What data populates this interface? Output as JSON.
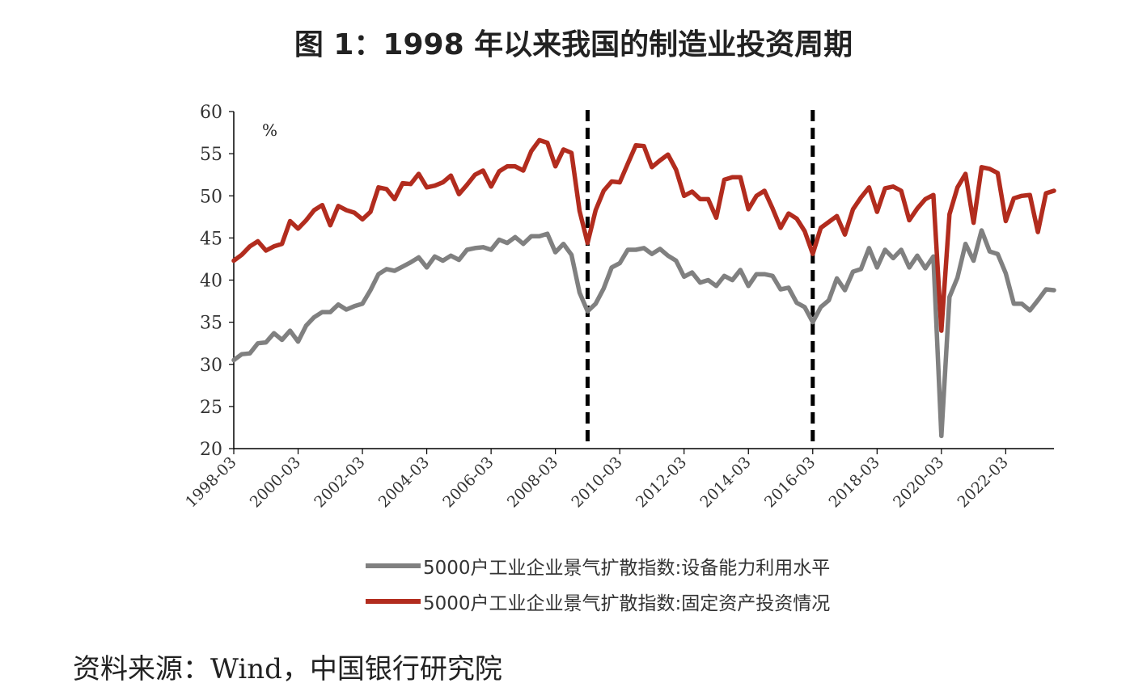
{
  "title": "图 1：1998 年以来我国的制造业投资周期",
  "source": "资料来源：Wind，中国银行研究院",
  "chart_data": {
    "type": "line",
    "unit_label": "%",
    "ylim": [
      20,
      60
    ],
    "yticks": [
      20,
      25,
      30,
      35,
      40,
      45,
      50,
      55,
      60
    ],
    "x_start": "1998-03",
    "x_step_months": 3,
    "x_ticks": [
      "1998-03",
      "2000-03",
      "2002-03",
      "2004-03",
      "2006-03",
      "2008-03",
      "2010-03",
      "2012-03",
      "2014-03",
      "2016-03",
      "2018-03",
      "2020-03",
      "2022-03"
    ],
    "marker_dates": [
      "2009-03",
      "2016-03"
    ],
    "legend_position": "bottom",
    "series": [
      {
        "name": "5000户工业企业景气扩散指数:设备能力利用水平",
        "color": "#808080",
        "values": [
          30.5,
          31.2,
          31.3,
          32.5,
          32.6,
          33.7,
          32.9,
          34.0,
          32.7,
          34.6,
          35.6,
          36.2,
          36.2,
          37.1,
          36.5,
          36.9,
          37.2,
          38.8,
          40.7,
          41.3,
          41.1,
          41.6,
          42.1,
          42.7,
          41.5,
          42.8,
          42.3,
          42.9,
          42.4,
          43.6,
          43.8,
          43.9,
          43.6,
          44.8,
          44.4,
          45.1,
          44.3,
          45.2,
          45.2,
          45.5,
          43.3,
          44.3,
          43.0,
          38.5,
          36.3,
          37.2,
          39.0,
          41.5,
          42.0,
          43.6,
          43.6,
          43.8,
          43.1,
          43.7,
          42.9,
          42.3,
          40.4,
          40.9,
          39.7,
          40.0,
          39.3,
          40.5,
          40.0,
          41.2,
          39.3,
          40.7,
          40.7,
          40.5,
          38.9,
          39.1,
          37.3,
          36.8,
          35.0,
          36.8,
          37.6,
          40.2,
          38.8,
          41.0,
          41.3,
          43.8,
          41.5,
          43.6,
          42.6,
          43.6,
          41.5,
          42.9,
          41.4,
          42.8,
          21.5,
          38.0,
          40.3,
          44.3,
          42.3,
          45.9,
          43.4,
          43.1,
          40.8,
          37.2,
          37.2,
          36.4,
          37.6,
          38.9,
          38.8
        ]
      },
      {
        "name": "5000户工业企业景气扩散指数:固定资产投资情况",
        "color": "#B22C1E",
        "values": [
          42.3,
          43.0,
          44.0,
          44.6,
          43.5,
          44.0,
          44.3,
          47.0,
          46.1,
          47.1,
          48.3,
          48.9,
          46.5,
          48.8,
          48.3,
          48.0,
          47.2,
          48.1,
          51.0,
          50.8,
          49.6,
          51.5,
          51.4,
          52.6,
          51.0,
          51.2,
          51.6,
          52.4,
          50.2,
          51.3,
          52.5,
          53.0,
          51.1,
          52.9,
          53.5,
          53.5,
          53.0,
          55.3,
          56.6,
          56.3,
          53.5,
          55.5,
          55.1,
          48.2,
          44.4,
          48.3,
          50.6,
          51.7,
          51.6,
          53.8,
          56.0,
          55.9,
          53.4,
          54.2,
          54.9,
          53.1,
          50.0,
          50.5,
          49.6,
          49.6,
          47.4,
          51.9,
          52.2,
          52.2,
          48.4,
          50.0,
          50.6,
          48.5,
          46.2,
          47.9,
          47.3,
          45.8,
          43.1,
          46.2,
          46.9,
          47.6,
          45.4,
          48.4,
          49.8,
          51.0,
          48.1,
          50.9,
          51.1,
          50.6,
          47.1,
          48.5,
          49.6,
          50.1,
          34.0,
          47.8,
          51.0,
          52.6,
          46.8,
          53.4,
          53.2,
          52.7,
          47.0,
          49.7,
          50.0,
          50.1,
          45.7,
          50.3,
          50.6
        ]
      }
    ]
  }
}
